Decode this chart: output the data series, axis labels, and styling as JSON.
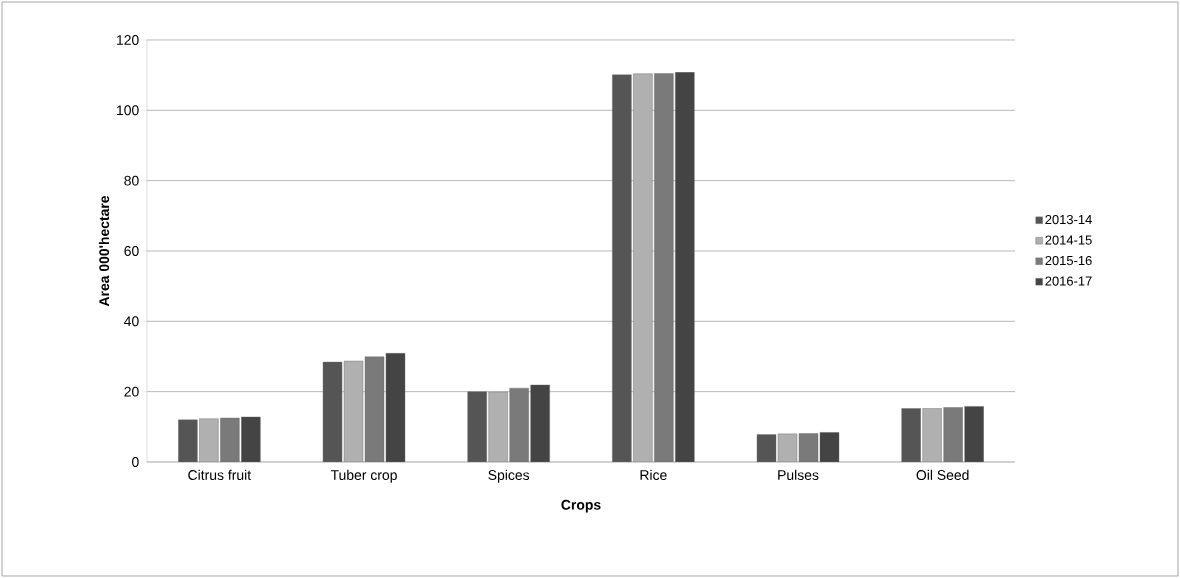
{
  "chart_data": {
    "type": "bar",
    "xlabel": "Crops",
    "ylabel": "Area 000'hectare",
    "categories": [
      "Citrus fruit",
      "Tuber crop",
      "Spices",
      "Rice",
      "Pulses",
      "Oil Seed"
    ],
    "series": [
      {
        "name": "2013-14",
        "color": "#555555",
        "values": [
          12.0,
          28.4,
          20.0,
          110.1,
          7.8,
          15.2
        ]
      },
      {
        "name": "2014-15",
        "color": "#b0b0b0",
        "values": [
          12.3,
          28.7,
          19.9,
          110.4,
          8.0,
          15.2
        ]
      },
      {
        "name": "2015-16",
        "color": "#7a7a7a",
        "values": [
          12.5,
          29.9,
          21.0,
          110.5,
          8.1,
          15.5
        ]
      },
      {
        "name": "2016-17",
        "color": "#444444",
        "values": [
          12.8,
          30.9,
          21.9,
          110.8,
          8.4,
          15.8
        ]
      }
    ],
    "ylim": [
      0,
      120
    ],
    "yticks": [
      0,
      20,
      40,
      60,
      80,
      100,
      120
    ],
    "grid": "y",
    "legend": "right"
  }
}
